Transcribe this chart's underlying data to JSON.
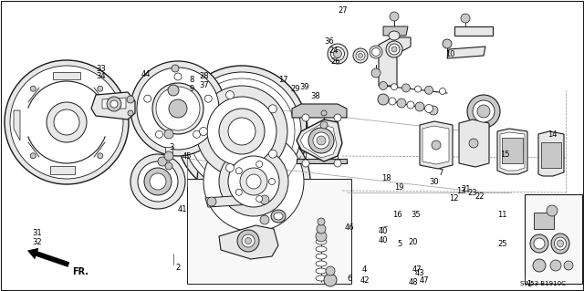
{
  "bg_color": "#ffffff",
  "fig_width": 6.4,
  "fig_height": 3.19,
  "dpi": 100,
  "diagram_code_ref": "SW53 B1910C",
  "direction_label": "FR.",
  "line_color": "#1a1a1a",
  "text_color": "#000000",
  "font_size_labels": 6.0,
  "font_size_ref": 5.0,
  "gray_fill": "#c8c8c8",
  "light_fill": "#e8e8e8",
  "white_fill": "#ffffff"
}
